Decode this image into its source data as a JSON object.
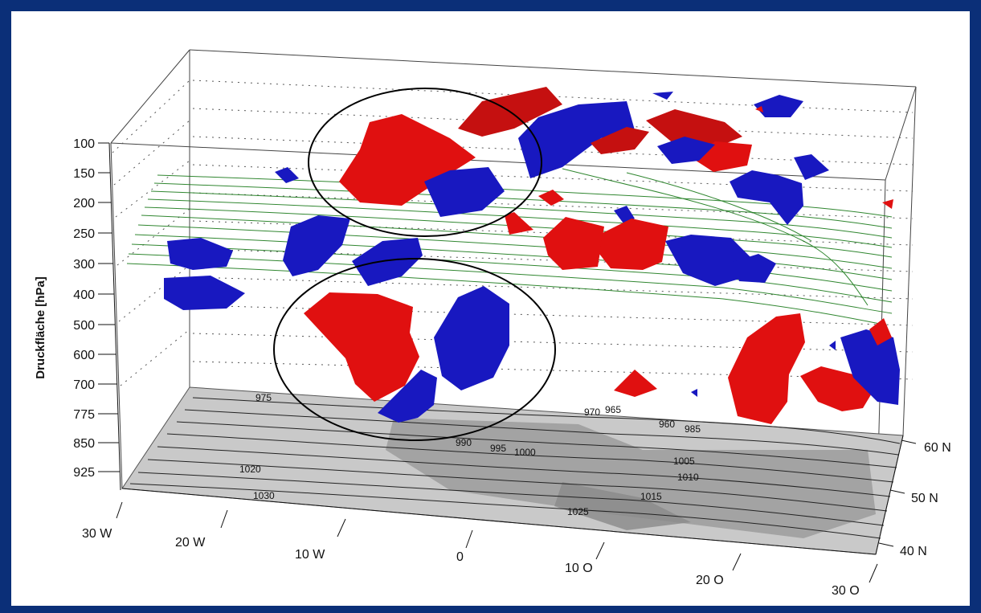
{
  "chart_data": {
    "type": "3d-surface-blobs",
    "title": "",
    "ylabel": "Druckfläche [hPa]",
    "pressure_levels": [
      "100",
      "150",
      "200",
      "250",
      "300",
      "400",
      "500",
      "600",
      "700",
      "775",
      "850",
      "925"
    ],
    "longitude_ticks": [
      "30 W",
      "20 W",
      "10 W",
      "0",
      "10 O",
      "20 O",
      "30 O"
    ],
    "latitude_ticks": [
      "60 N",
      "50 N",
      "40 N"
    ],
    "surface_isobar_labels": [
      "975",
      "970",
      "965",
      "960",
      "985",
      "990",
      "995",
      "1000",
      "1005",
      "1010",
      "1015",
      "1020",
      "1025",
      "1030"
    ],
    "colors": {
      "positive_anomaly": "#e01010",
      "negative_anomaly": "#1010c0",
      "jet_streamlines": "#1a7a1a",
      "surface": "#bdbdbd",
      "frame_background": "#0b2f78"
    },
    "highlights": [
      "upper-level circled pair",
      "mid-level circled pair"
    ]
  }
}
